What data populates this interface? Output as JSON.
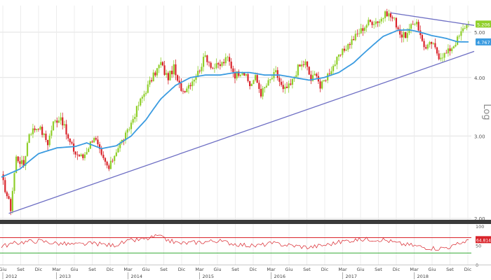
{
  "chart_data": [
    {
      "type": "candlestick",
      "scale": "log",
      "axis_label": "Log",
      "ylim": [
        2.0,
        5.7
      ],
      "y_ticks": [
        {
          "value": 2.0,
          "label": "2.00"
        },
        {
          "value": 3.0,
          "label": "3.00"
        },
        {
          "value": 4.0,
          "label": "4.00"
        },
        {
          "value": 5.0,
          "label": "5.00"
        }
      ],
      "x_ticks": [
        "Giu",
        "Set",
        "Dic",
        "Mar",
        "Giu",
        "Set",
        "Dic",
        "Mar",
        "Giu",
        "Set",
        "Dic",
        "Mar",
        "Giu",
        "Set",
        "Dic",
        "Mar",
        "Giu",
        "Set",
        "Dic",
        "Mar",
        "Giu",
        "Set",
        "Dic",
        "Mar",
        "Giu",
        "Set",
        "Dic"
      ],
      "years": [
        {
          "label": "2012",
          "tick": 0
        },
        {
          "label": "2013",
          "tick": 3
        },
        {
          "label": "2014",
          "tick": 7
        },
        {
          "label": "2015",
          "tick": 11
        },
        {
          "label": "2016",
          "tick": 15
        },
        {
          "label": "2017",
          "tick": 19
        },
        {
          "label": "2018",
          "tick": 23
        }
      ],
      "price_path": [
        [
          0,
          2.45
        ],
        [
          5,
          2.1
        ],
        [
          8,
          2.7
        ],
        [
          12,
          2.6
        ],
        [
          15,
          3.05
        ],
        [
          20,
          3.15
        ],
        [
          25,
          2.9
        ],
        [
          28,
          3.2
        ],
        [
          32,
          3.3
        ],
        [
          36,
          2.95
        ],
        [
          40,
          2.75
        ],
        [
          44,
          2.7
        ],
        [
          46,
          2.8
        ],
        [
          50,
          3.0
        ],
        [
          54,
          2.7
        ],
        [
          58,
          2.55
        ],
        [
          62,
          2.8
        ],
        [
          68,
          3.05
        ],
        [
          74,
          3.5
        ],
        [
          80,
          3.9
        ],
        [
          86,
          4.3
        ],
        [
          88,
          4.1
        ],
        [
          90,
          4.0
        ],
        [
          93,
          4.2
        ],
        [
          95,
          3.9
        ],
        [
          98,
          3.75
        ],
        [
          102,
          3.9
        ],
        [
          106,
          4.1
        ],
        [
          110,
          4.45
        ],
        [
          114,
          4.2
        ],
        [
          118,
          4.25
        ],
        [
          122,
          4.4
        ],
        [
          126,
          4.05
        ],
        [
          130,
          4.15
        ],
        [
          134,
          3.85
        ],
        [
          137,
          4.0
        ],
        [
          140,
          3.7
        ],
        [
          144,
          3.9
        ],
        [
          148,
          4.1
        ],
        [
          152,
          3.75
        ],
        [
          156,
          3.85
        ],
        [
          160,
          4.2
        ],
        [
          164,
          4.3
        ],
        [
          167,
          3.95
        ],
        [
          170,
          4.1
        ],
        [
          172,
          3.8
        ],
        [
          175,
          4.0
        ],
        [
          180,
          4.3
        ],
        [
          186,
          4.65
        ],
        [
          192,
          4.95
        ],
        [
          198,
          5.25
        ],
        [
          204,
          5.3
        ],
        [
          208,
          5.5
        ],
        [
          212,
          5.3
        ],
        [
          216,
          4.9
        ],
        [
          219,
          4.95
        ],
        [
          222,
          5.2
        ],
        [
          224,
          5.3
        ],
        [
          226,
          4.9
        ],
        [
          229,
          4.6
        ],
        [
          232,
          4.75
        ],
        [
          236,
          4.45
        ],
        [
          240,
          4.5
        ],
        [
          244,
          4.7
        ],
        [
          247,
          4.9
        ],
        [
          250,
          5.15
        ],
        [
          252,
          5.206
        ]
      ],
      "moving_average": [
        [
          0,
          2.45
        ],
        [
          10,
          2.55
        ],
        [
          20,
          2.75
        ],
        [
          30,
          2.83
        ],
        [
          40,
          2.85
        ],
        [
          46,
          2.9
        ],
        [
          54,
          2.82
        ],
        [
          62,
          2.86
        ],
        [
          70,
          3.0
        ],
        [
          78,
          3.25
        ],
        [
          86,
          3.6
        ],
        [
          94,
          3.85
        ],
        [
          102,
          4.0
        ],
        [
          110,
          4.05
        ],
        [
          118,
          4.05
        ],
        [
          126,
          4.1
        ],
        [
          134,
          4.1
        ],
        [
          142,
          4.05
        ],
        [
          150,
          4.05
        ],
        [
          158,
          4.0
        ],
        [
          166,
          3.95
        ],
        [
          174,
          4.0
        ],
        [
          182,
          4.1
        ],
        [
          190,
          4.3
        ],
        [
          198,
          4.6
        ],
        [
          206,
          4.9
        ],
        [
          214,
          5.05
        ],
        [
          220,
          5.06
        ],
        [
          226,
          5.0
        ],
        [
          232,
          4.92
        ],
        [
          240,
          4.85
        ],
        [
          246,
          4.77
        ],
        [
          252,
          4.767
        ]
      ],
      "trendlines": [
        {
          "from": [
            4,
            2.05
          ],
          "to": [
            252,
            4.55
          ]
        },
        {
          "from": [
            210,
            5.5
          ],
          "to": [
            252,
            5.17
          ]
        }
      ],
      "last_value": {
        "label": "5.206",
        "color": "#8fcf2a"
      },
      "ma_value": {
        "label": "4.767",
        "color": "#3a9be0"
      },
      "colors": {
        "up": "#8fcf2a",
        "down": "#d9242b",
        "ma": "#3a9be0",
        "trendline": "#6e6fc4",
        "grid": "#e1e1e1"
      }
    },
    {
      "type": "line",
      "name": "RSI",
      "ylim": [
        0,
        100
      ],
      "y_ticks": [
        {
          "value": 100,
          "label": "100"
        },
        {
          "value": 50,
          "label": "50"
        },
        {
          "value": 0,
          "label": "0"
        }
      ],
      "upper_band": 70,
      "lower_band": 30,
      "path": [
        [
          0,
          48
        ],
        [
          10,
          58
        ],
        [
          20,
          62
        ],
        [
          30,
          55
        ],
        [
          40,
          52
        ],
        [
          50,
          55
        ],
        [
          60,
          50
        ],
        [
          70,
          62
        ],
        [
          80,
          68
        ],
        [
          84,
          75
        ],
        [
          88,
          66
        ],
        [
          96,
          55
        ],
        [
          106,
          58
        ],
        [
          116,
          62
        ],
        [
          126,
          54
        ],
        [
          136,
          48
        ],
        [
          146,
          55
        ],
        [
          156,
          50
        ],
        [
          166,
          45
        ],
        [
          176,
          52
        ],
        [
          186,
          62
        ],
        [
          196,
          66
        ],
        [
          206,
          65
        ],
        [
          214,
          55
        ],
        [
          222,
          50
        ],
        [
          228,
          45
        ],
        [
          236,
          42
        ],
        [
          244,
          48
        ],
        [
          252,
          64.81
        ]
      ],
      "last_value": {
        "label": "64.8148"
      },
      "colors": {
        "line": "#d9242b",
        "upper": "#d9242b",
        "lower": "#3cae3c"
      }
    }
  ]
}
